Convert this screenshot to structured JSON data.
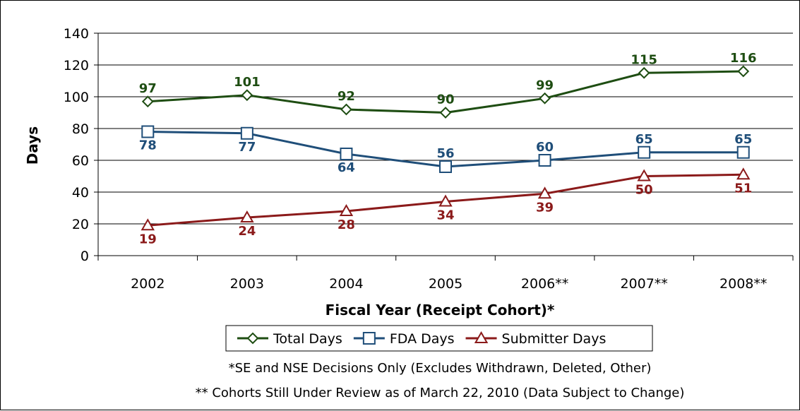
{
  "chart_data": {
    "type": "line",
    "categories": [
      "2002",
      "2003",
      "2004",
      "2005",
      "2006**",
      "2007**",
      "2008**"
    ],
    "xlabel": "Fiscal Year (Receipt Cohort)*",
    "ylabel": "Days",
    "ylim": [
      0,
      140
    ],
    "yticks": [
      0,
      20,
      40,
      60,
      80,
      100,
      120,
      140
    ],
    "grid": true,
    "legend_position": "bottom",
    "series": [
      {
        "name": "Total Days",
        "values": [
          97,
          101,
          92,
          90,
          99,
          115,
          116
        ],
        "color": "#1e4d12",
        "marker": "diamond",
        "label_position": "above"
      },
      {
        "name": "FDA Days",
        "values": [
          78,
          77,
          64,
          56,
          60,
          65,
          65
        ],
        "color": "#1f4e79",
        "marker": "square",
        "label_position": [
          "below",
          "below",
          "below",
          "above",
          "above",
          "above",
          "above"
        ]
      },
      {
        "name": "Submitter Days",
        "values": [
          19,
          24,
          28,
          34,
          39,
          50,
          51
        ],
        "color": "#8b1a1a",
        "marker": "triangle",
        "label_position": "below"
      }
    ],
    "footnotes": [
      "*SE and NSE Decisions Only (Excludes Withdrawn, Deleted, Other)",
      "** Cohorts Still Under Review as of March 22, 2010 (Data Subject to Change)"
    ]
  }
}
